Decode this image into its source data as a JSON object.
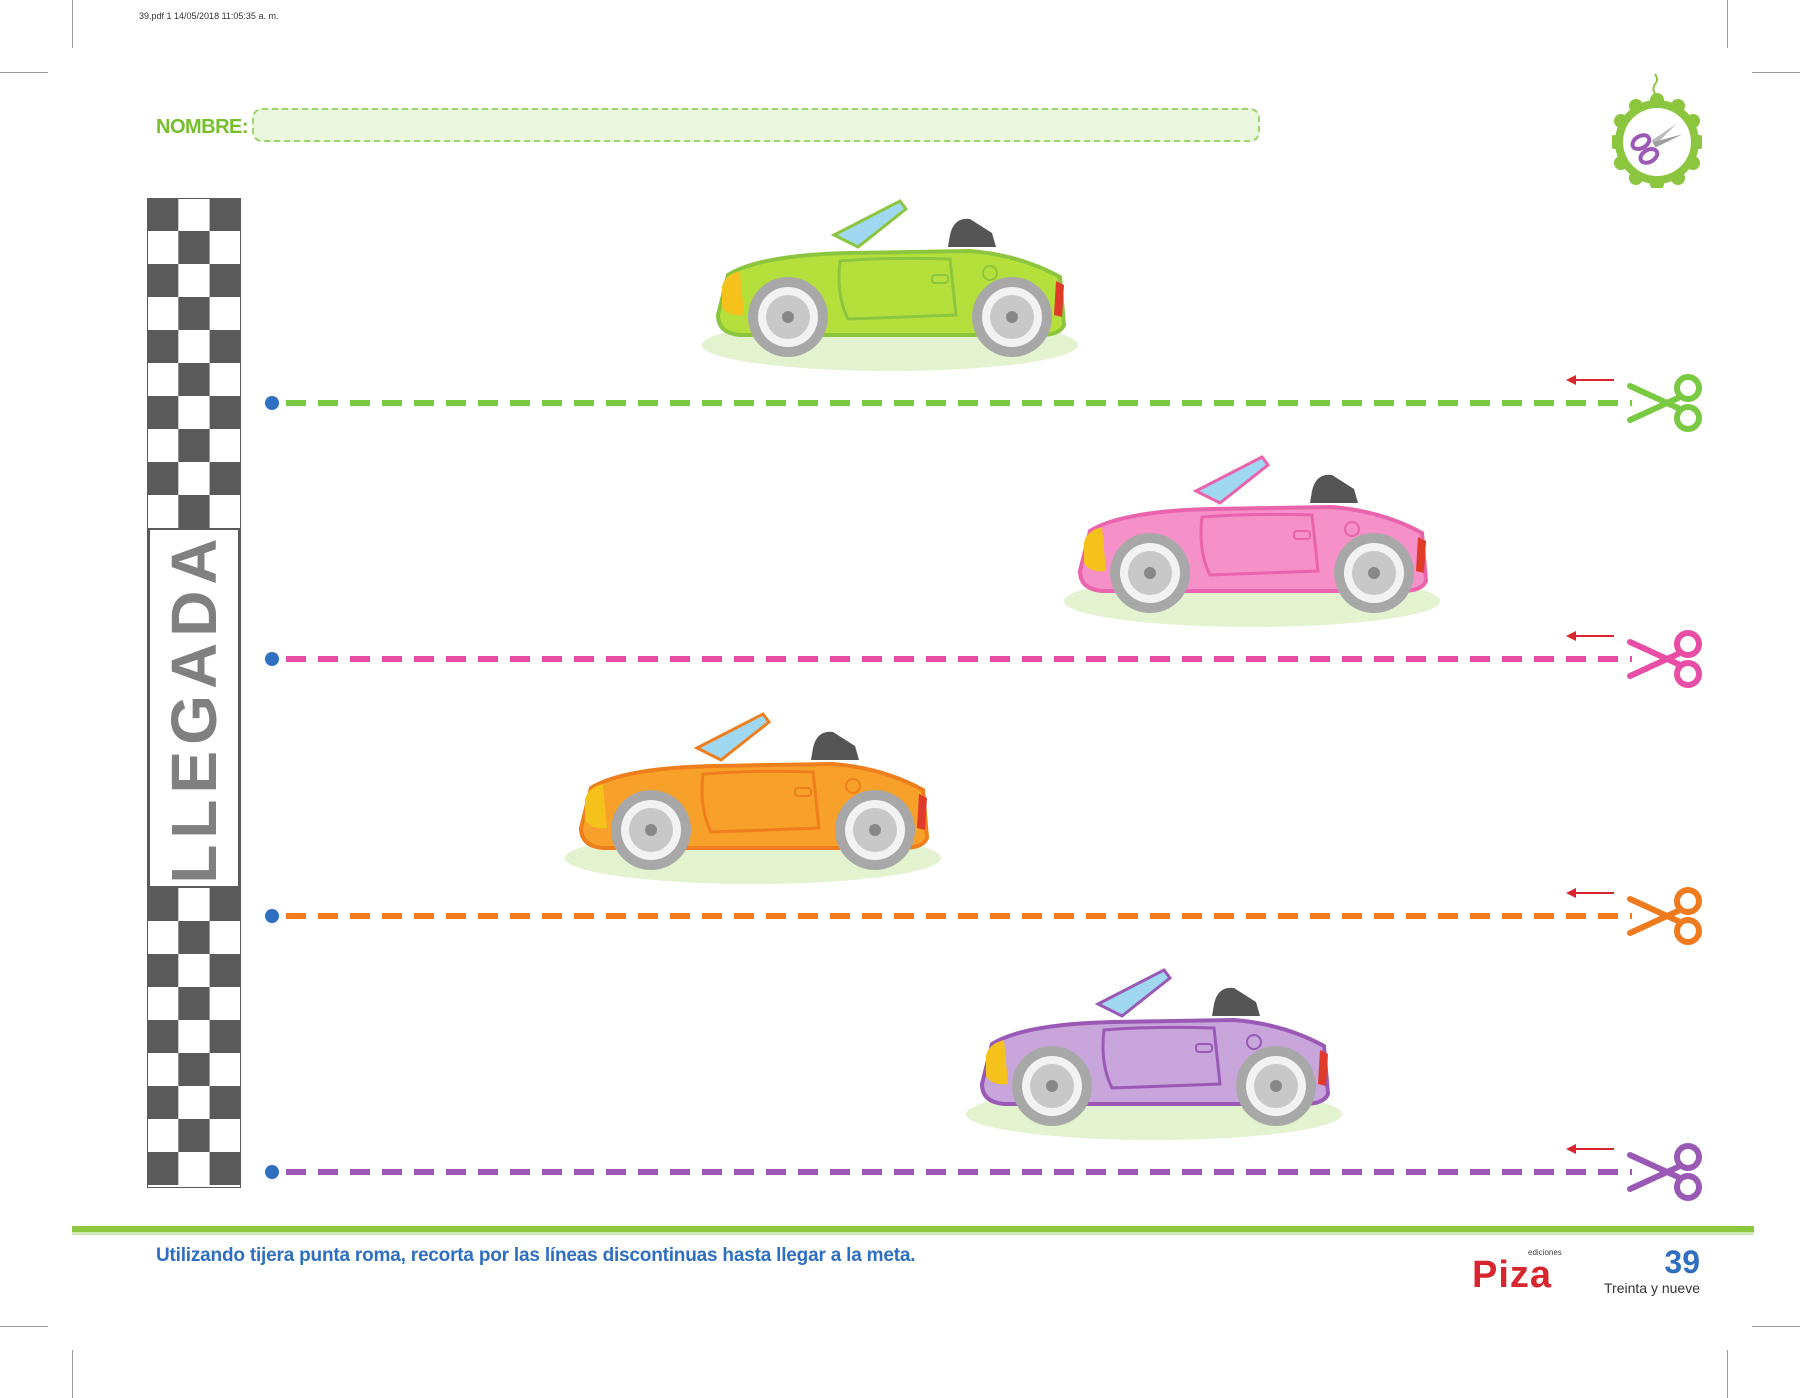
{
  "print_header": "39.pdf   1   14/05/2018   11:05:35 a. m.",
  "nombre": {
    "label": "NOMBRE:",
    "value": ""
  },
  "finish": {
    "label": "LLEGADA"
  },
  "icons": {
    "badge": "scissors-badge-icon",
    "scissors": "scissors-icon",
    "arrow": "arrow-left-icon",
    "car": "convertible-car-icon"
  },
  "lanes": [
    {
      "color": "#7ac943",
      "car_color": "#b5e03c",
      "car_stroke": "#8cc63f"
    },
    {
      "color": "#e84ea5",
      "car_color": "#f590c8",
      "car_stroke": "#ea63ad"
    },
    {
      "color": "#f07b1e",
      "car_color": "#f7a02a",
      "car_stroke": "#ee7f1c"
    },
    {
      "color": "#9b59b6",
      "car_color": "#c8a6db",
      "car_stroke": "#9b59b6"
    }
  ],
  "colors": {
    "accent_green": "#76bf2c",
    "accent_blue": "#2f6fbf",
    "dot_blue": "#2f6fbf",
    "arrow_red": "#d8262e"
  },
  "footer": {
    "instruction": "Utilizando tijera punta roma, recorta por las líneas discontinuas hasta llegar a la meta.",
    "brand": "Piza",
    "brand_sub": "ediciones",
    "page_number": "39",
    "page_words": "Treinta y nueve"
  }
}
